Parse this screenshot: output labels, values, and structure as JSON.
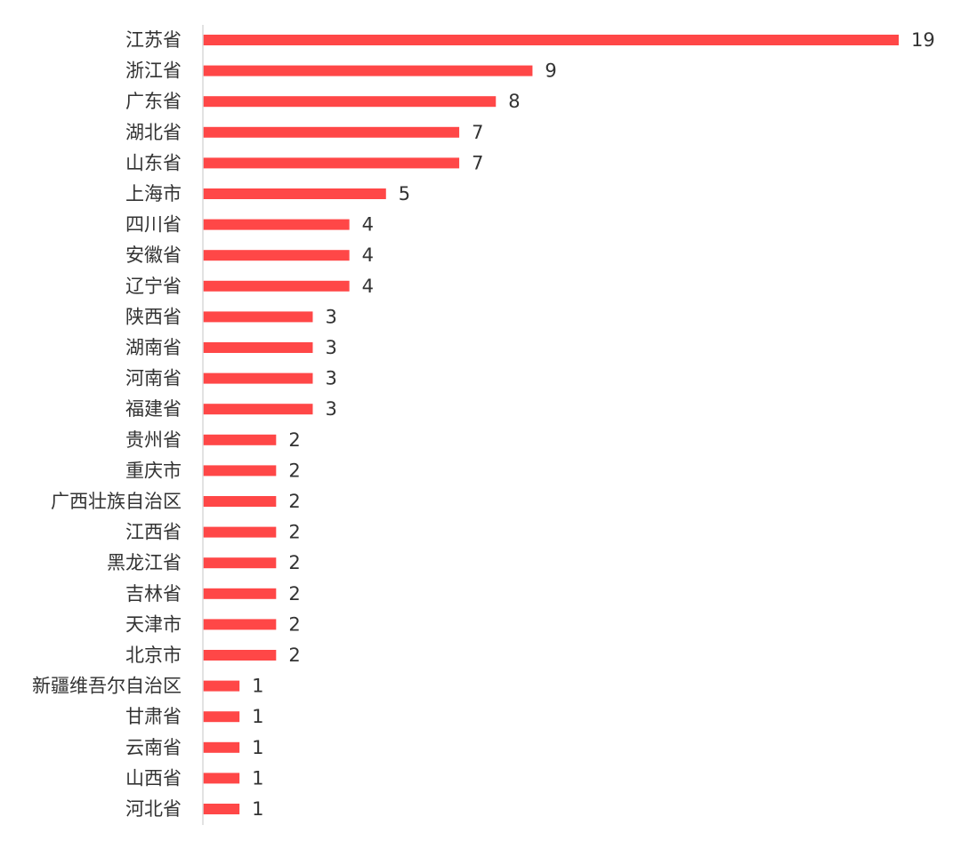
{
  "chart_data": {
    "type": "bar",
    "orientation": "horizontal",
    "title": "",
    "xlabel": "",
    "ylabel": "",
    "categories": [
      "江苏省",
      "浙江省",
      "广东省",
      "湖北省",
      "山东省",
      "上海市",
      "四川省",
      "安徽省",
      "辽宁省",
      "陕西省",
      "湖南省",
      "河南省",
      "福建省",
      "贵州省",
      "重庆市",
      "广西壮族自治区",
      "江西省",
      "黑龙江省",
      "吉林省",
      "天津市",
      "北京市",
      "新疆维吾尔自治区",
      "甘肃省",
      "云南省",
      "山西省",
      "河北省"
    ],
    "values": [
      19,
      9,
      8,
      7,
      7,
      5,
      4,
      4,
      4,
      3,
      3,
      3,
      3,
      2,
      2,
      2,
      2,
      2,
      2,
      2,
      2,
      1,
      1,
      1,
      1,
      1
    ],
    "xlim": [
      0,
      19
    ],
    "bar_color": "#ff4747",
    "grid": false,
    "legend": "none",
    "data_labels": true
  }
}
